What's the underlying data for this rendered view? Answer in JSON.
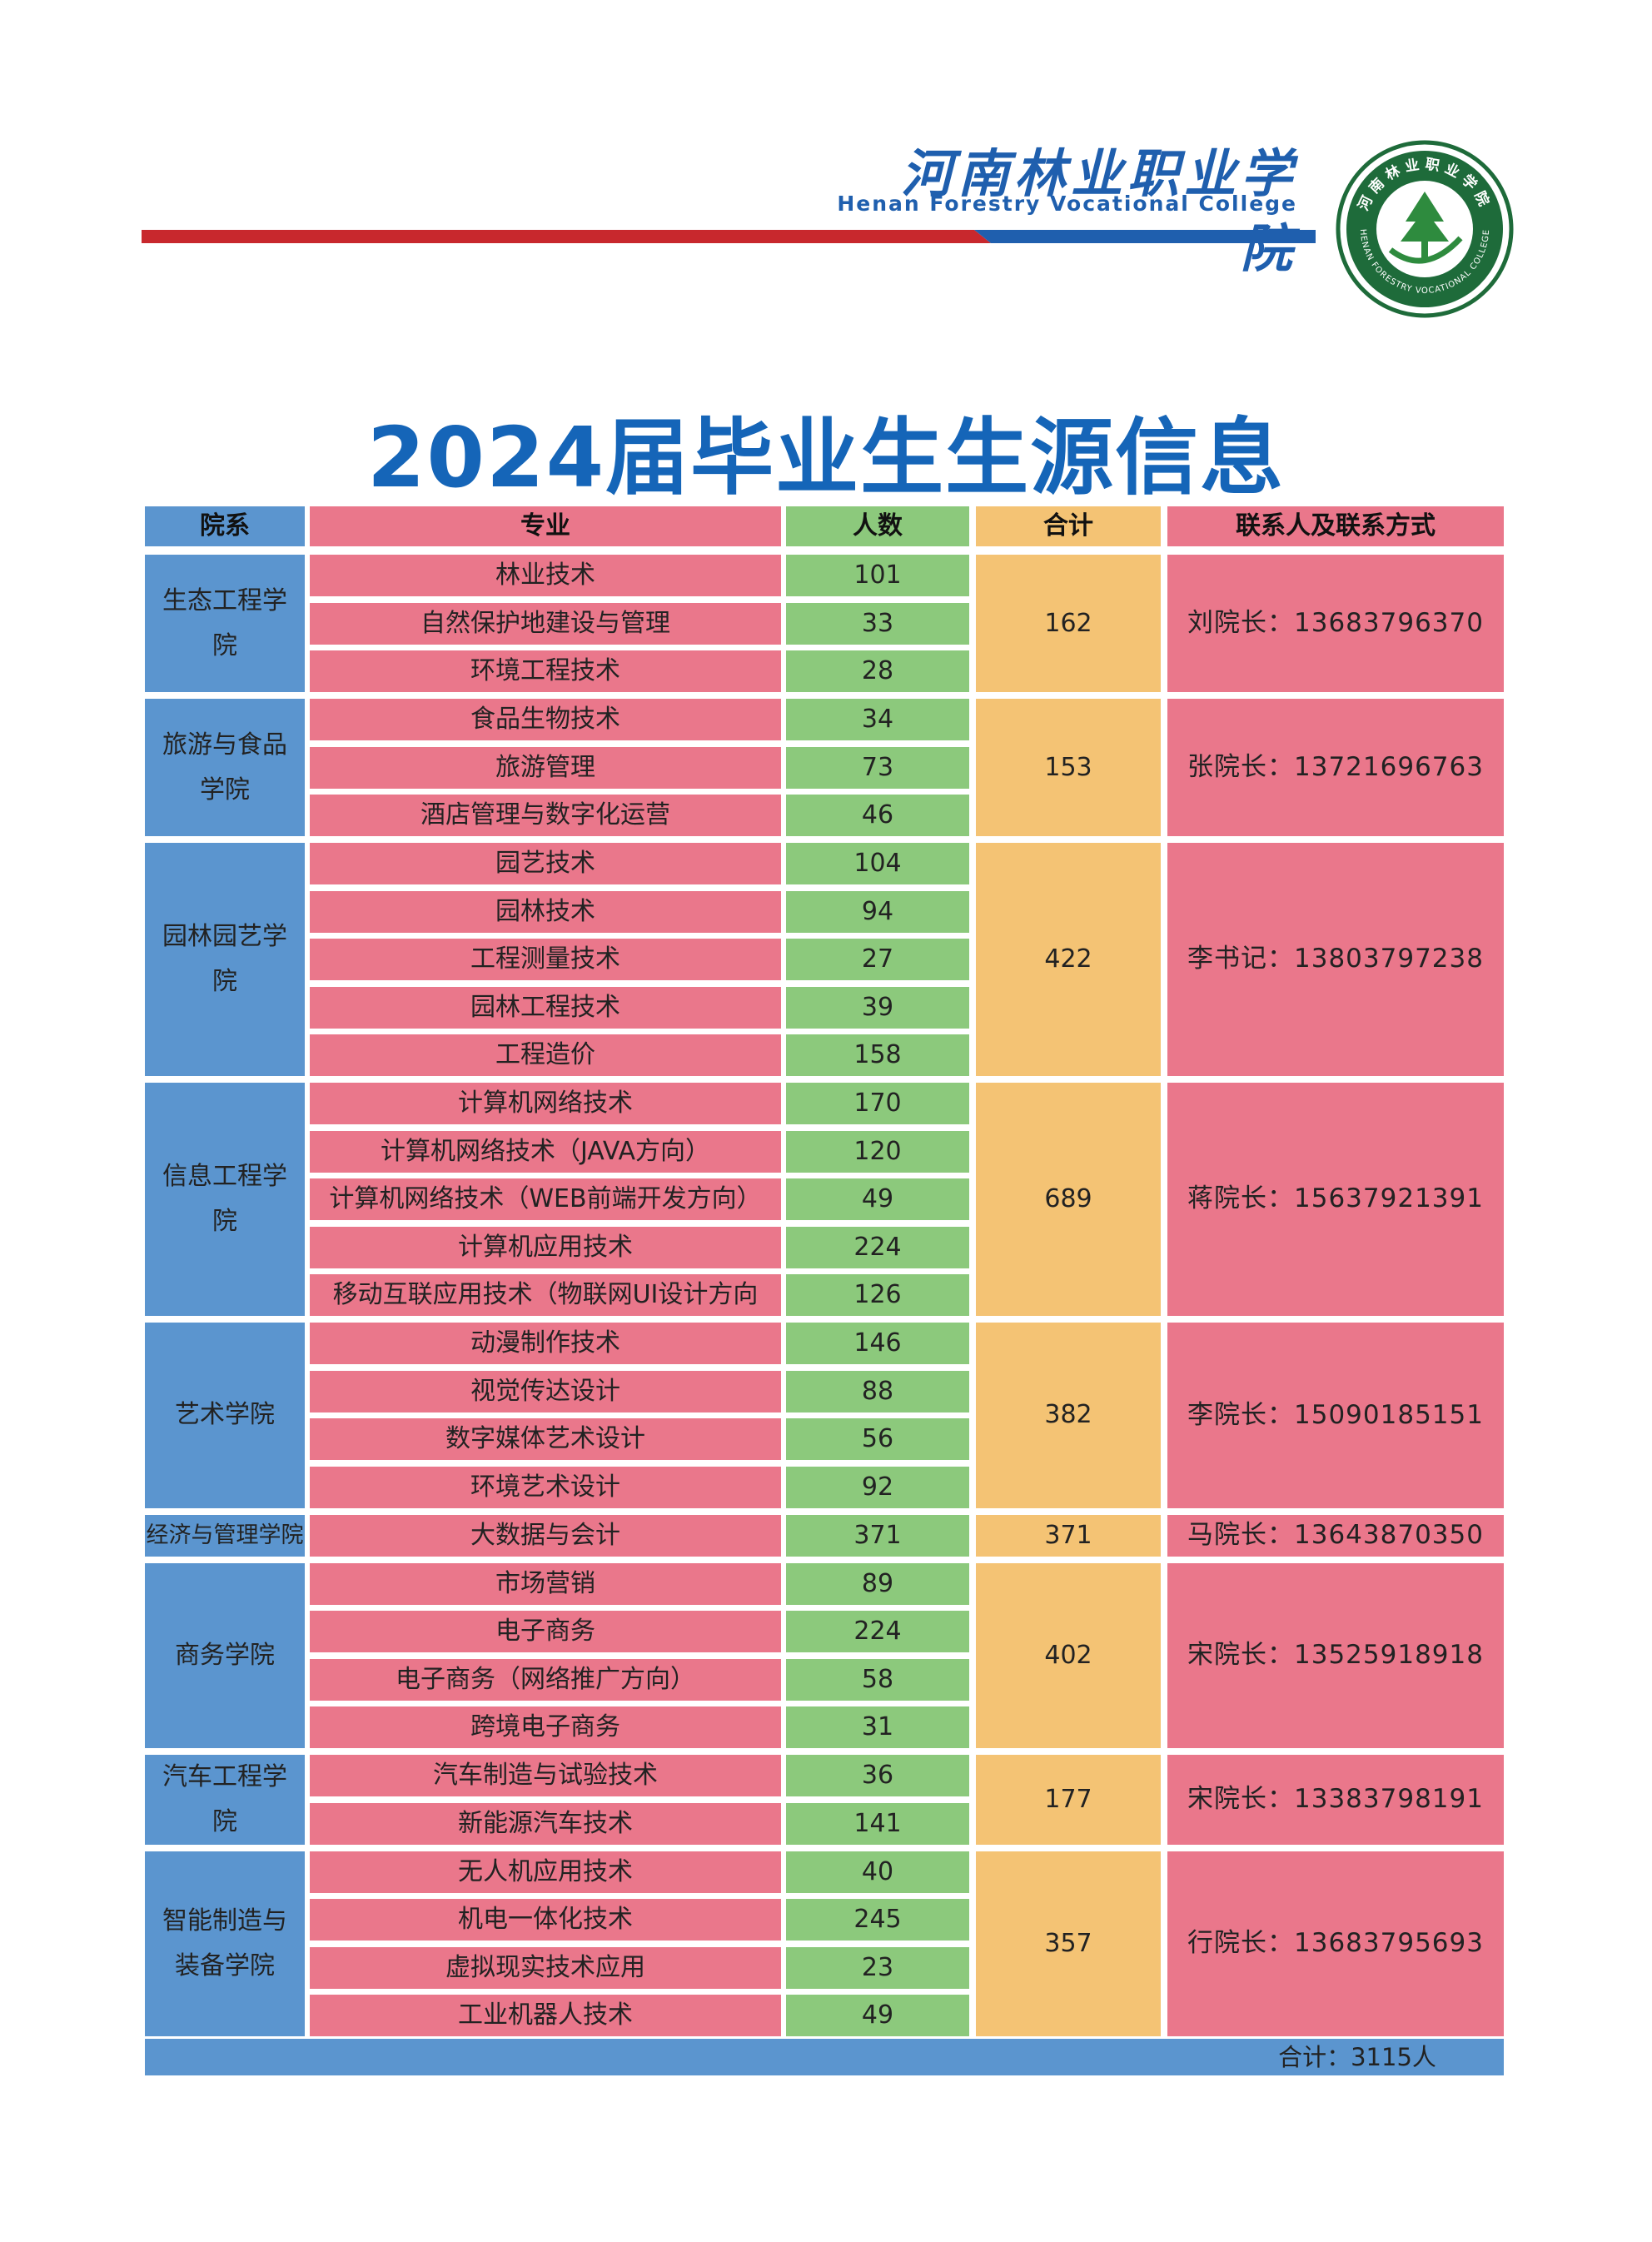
{
  "header": {
    "school_name_cn": "河南林业职业学院",
    "school_name_en": "Henan Forestry Vocational College",
    "seal_text_cn": "河南林业职业学院",
    "seal_text_en": "HENAN FORESTRY VOCATIONAL COLLEGE",
    "colors": {
      "brand_blue": "#1f5fae",
      "accent_red": "#c8282d"
    }
  },
  "title": "2024届毕业生生源信息",
  "table": {
    "headers": {
      "college": "院系",
      "major": "专业",
      "count": "人数",
      "subtotal": "合计",
      "contact": "联系人及联系方式"
    },
    "groups": [
      {
        "college": "生态工程学院",
        "subtotal": "162",
        "contact": "刘院长：13683796370",
        "majors": [
          {
            "name": "林业技术",
            "count": "101"
          },
          {
            "name": "自然保护地建设与管理",
            "count": "33"
          },
          {
            "name": "环境工程技术",
            "count": "28"
          }
        ]
      },
      {
        "college": "旅游与食品学院",
        "subtotal": "153",
        "contact": "张院长：13721696763",
        "majors": [
          {
            "name": "食品生物技术",
            "count": "34"
          },
          {
            "name": "旅游管理",
            "count": "73"
          },
          {
            "name": "酒店管理与数字化运营",
            "count": "46"
          }
        ]
      },
      {
        "college": "园林园艺学院",
        "subtotal": "422",
        "contact": "李书记：13803797238",
        "majors": [
          {
            "name": "园艺技术",
            "count": "104"
          },
          {
            "name": "园林技术",
            "count": "94"
          },
          {
            "name": "工程测量技术",
            "count": "27"
          },
          {
            "name": "园林工程技术",
            "count": "39"
          },
          {
            "name": "工程造价",
            "count": "158"
          }
        ]
      },
      {
        "college": "信息工程学院",
        "subtotal": "689",
        "contact": "蒋院长：15637921391",
        "majors": [
          {
            "name": "计算机网络技术",
            "count": "170"
          },
          {
            "name": "计算机网络技术（JAVA方向）",
            "count": "120"
          },
          {
            "name": "计算机网络技术（WEB前端开发方向）",
            "count": "49"
          },
          {
            "name": "计算机应用技术",
            "count": "224"
          },
          {
            "name": "移动互联应用技术（物联网UI设计方向",
            "count": "126"
          }
        ]
      },
      {
        "college": "艺术学院",
        "subtotal": "382",
        "contact": "李院长：15090185151",
        "majors": [
          {
            "name": "动漫制作技术",
            "count": "146"
          },
          {
            "name": "视觉传达设计",
            "count": "88"
          },
          {
            "name": "数字媒体艺术设计",
            "count": "56"
          },
          {
            "name": "环境艺术设计",
            "count": "92"
          }
        ]
      },
      {
        "college": "经济与管理学院",
        "subtotal": "371",
        "contact": "马院长：13643870350",
        "majors": [
          {
            "name": "大数据与会计",
            "count": "371"
          }
        ]
      },
      {
        "college": "商务学院",
        "subtotal": "402",
        "contact": "宋院长：13525918918",
        "majors": [
          {
            "name": "市场营销",
            "count": "89"
          },
          {
            "name": "电子商务",
            "count": "224"
          },
          {
            "name": "电子商务（网络推广方向）",
            "count": "58"
          },
          {
            "name": "跨境电子商务",
            "count": "31"
          }
        ]
      },
      {
        "college": "汽车工程学院",
        "subtotal": "177",
        "contact": "宋院长：13383798191",
        "majors": [
          {
            "name": "汽车制造与试验技术",
            "count": "36"
          },
          {
            "name": "新能源汽车技术",
            "count": "141"
          }
        ]
      },
      {
        "college": "智能制造与装备学院",
        "subtotal": "357",
        "contact": "行院长：13683795693",
        "majors": [
          {
            "name": "无人机应用技术",
            "count": "40"
          },
          {
            "name": "机电一体化技术",
            "count": "245"
          },
          {
            "name": "虚拟现实技术应用",
            "count": "23"
          },
          {
            "name": "工业机器人技术",
            "count": "49"
          }
        ]
      }
    ],
    "total_text": "合计：3115人",
    "colors": {
      "college": "#5b95cf",
      "major": "#ea778b",
      "count": "#8cc97c",
      "subtotal": "#f4c374",
      "contact": "#ea778b"
    }
  }
}
